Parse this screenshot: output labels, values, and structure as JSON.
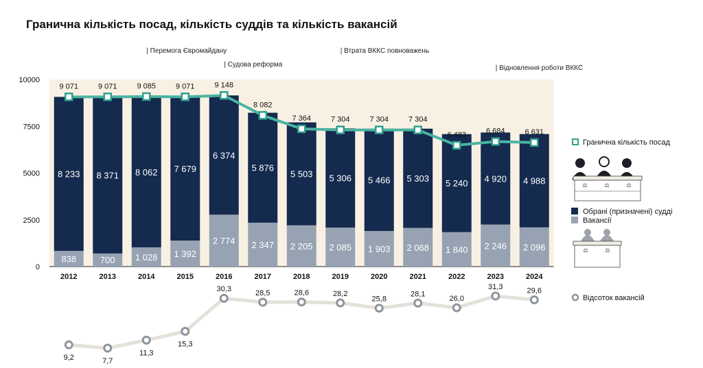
{
  "title": "Гранична кількість посад, кількість суддів та кількість вакансій",
  "colors": {
    "judges": "#142a4e",
    "vacancies": "#97a3b3",
    "max_line": "#4bb3a2",
    "max_marker_stroke": "#2f9e8b",
    "pct_line": "#e4e0da",
    "pct_marker": "#8e949c",
    "band_bg": "#f8f1e3"
  },
  "annotations": [
    {
      "text": "| Перемога Євромайдану",
      "year": "2014"
    },
    {
      "text": "| Судова реформа",
      "year": "2016"
    },
    {
      "text": "| Втрата ВККС повноважень",
      "year": "2019"
    },
    {
      "text": "| Відновлення роботи ВККС",
      "year": "2023"
    }
  ],
  "legend": {
    "max_positions": "Гранична кількість посад",
    "judges": "Обрані (призначені) судді",
    "vacancies": "Вакансії",
    "vacancy_pct": "Відсоток вакансій"
  },
  "chart_data": {
    "type": "bar",
    "stacked": true,
    "categories": [
      "2012",
      "2013",
      "2014",
      "2015",
      "2016",
      "2017",
      "2018",
      "2019",
      "2020",
      "2021",
      "2022",
      "2023",
      "2024"
    ],
    "y_ticks": [
      "0",
      "2500",
      "5000",
      "7500",
      "10000"
    ],
    "ylim": [
      0,
      10000
    ],
    "series": [
      {
        "name": "Обрані (призначені) судді",
        "values": [
          8233,
          8371,
          8062,
          7679,
          6374,
          5876,
          5503,
          5306,
          5466,
          5303,
          5240,
          4920,
          4988
        ],
        "labels": [
          "8 233",
          "8 371",
          "8 062",
          "7 679",
          "6 374",
          "5 876",
          "5 503",
          "5 306",
          "5 466",
          "5 303",
          "5 240",
          "4 920",
          "4 988"
        ]
      },
      {
        "name": "Вакансії",
        "values": [
          838,
          700,
          1028,
          1392,
          2774,
          2347,
          2205,
          2085,
          1903,
          2068,
          1840,
          2246,
          2096
        ],
        "labels": [
          "838",
          "700",
          "1 028",
          "1 392",
          "2 774",
          "2 347",
          "2 205",
          "2 085",
          "1 903",
          "2 068",
          "1 840",
          "2 246",
          "2 096"
        ]
      }
    ],
    "line": {
      "name": "Гранична кількість посад",
      "values": [
        9071,
        9071,
        9085,
        9071,
        9148,
        8082,
        7364,
        7304,
        7304,
        7304,
        6483,
        6684,
        6631
      ],
      "labels": [
        "9 071",
        "9 071",
        "9 085",
        "9 071",
        "9 148",
        "8 082",
        "7 364",
        "7 304",
        "7 304",
        "7 304",
        "6 483",
        "6 684",
        "6 631"
      ]
    },
    "pct_line": {
      "name": "Відсоток вакансій",
      "values": [
        9.2,
        7.7,
        11.3,
        15.3,
        30.3,
        28.5,
        28.6,
        28.2,
        25.8,
        28.1,
        26.0,
        31.3,
        29.6
      ],
      "labels": [
        "9,2",
        "7,7",
        "11,3",
        "15,3",
        "30,3",
        "28,5",
        "28,6",
        "28,2",
        "25,8",
        "28,1",
        "26,0",
        "31,3",
        "29,6"
      ]
    },
    "grid": false,
    "legend_position": "right"
  }
}
